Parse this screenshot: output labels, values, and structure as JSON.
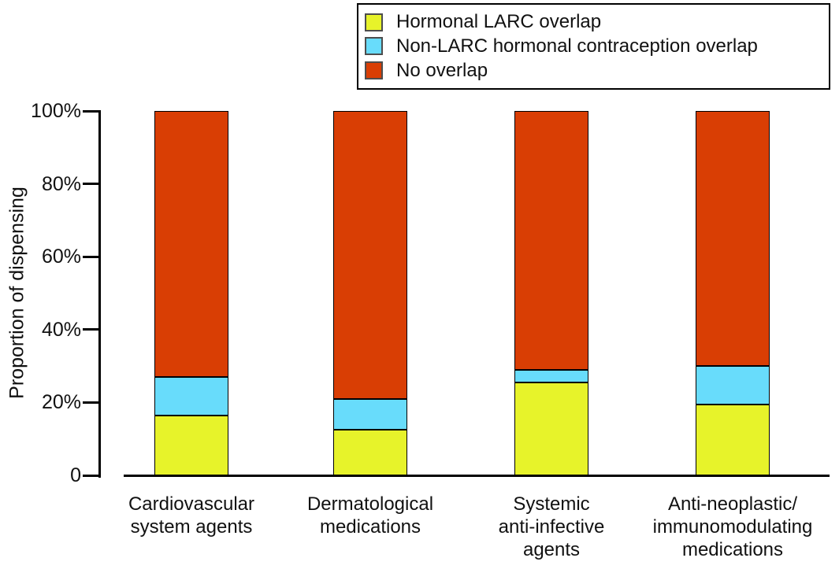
{
  "chart_data": {
    "type": "bar",
    "stacked": true,
    "title": "",
    "xlabel": "",
    "ylabel": "Proportion of dispensing",
    "ylim": [
      0,
      100
    ],
    "grid": false,
    "legend_position": "top-right",
    "y_ticks": [
      {
        "value": 0,
        "label": "0"
      },
      {
        "value": 20,
        "label": "20%"
      },
      {
        "value": 40,
        "label": "40%"
      },
      {
        "value": 60,
        "label": "60%"
      },
      {
        "value": 80,
        "label": "80%"
      },
      {
        "value": 100,
        "label": "100%"
      }
    ],
    "categories": [
      {
        "label": "Cardiovascular system agents",
        "label_lines": [
          "Cardiovascular",
          "system agents"
        ]
      },
      {
        "label": "Dermatological medications",
        "label_lines": [
          "Dermatological",
          "medications"
        ]
      },
      {
        "label": "Systemic anti-infective agents",
        "label_lines": [
          "Systemic",
          "anti-infective",
          "agents"
        ]
      },
      {
        "label": "Anti-neoplastic/immunomodulating medications",
        "label_lines": [
          "Anti-neoplastic/",
          "immunomodulating",
          "medications"
        ]
      }
    ],
    "series": [
      {
        "name": "Hormonal LARC overlap",
        "color": "#e7f32a",
        "values": [
          16.5,
          12.5,
          25.5,
          19.5
        ]
      },
      {
        "name": "Non-LARC hormonal contraception overlap",
        "color": "#68dcfb",
        "values": [
          10.5,
          8.5,
          3.5,
          10.5
        ]
      },
      {
        "name": "No overlap",
        "color": "#d93e04",
        "values": [
          73,
          79,
          71,
          70
        ]
      }
    ]
  },
  "colors": {
    "axis": "#000000",
    "text": "#111111",
    "legend_border": "#000000",
    "swatch_border": "#4d4d4d",
    "background": "#ffffff"
  }
}
